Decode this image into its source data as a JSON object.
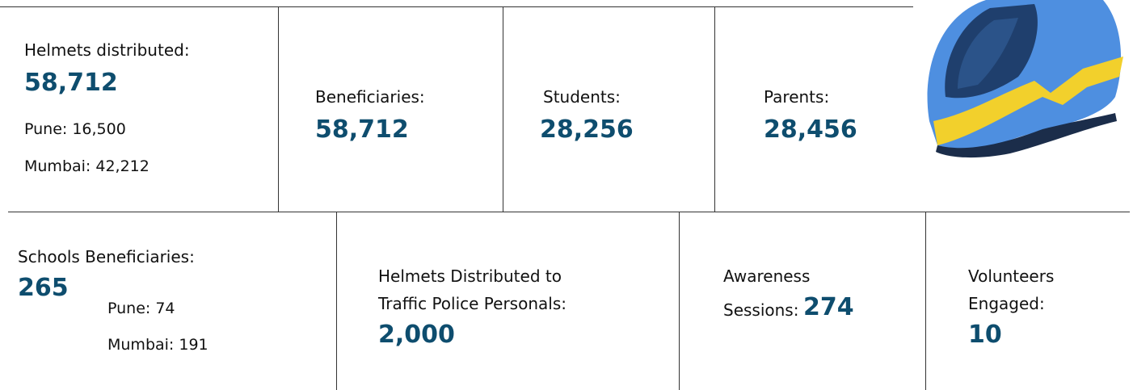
{
  "top": [
    {
      "label": "Helmets distributed:",
      "value": "58,712",
      "breakdown": [
        "Pune: 16,500",
        "Mumbai: 42,212"
      ]
    },
    {
      "label": "Beneficiaries:",
      "value": "58,712"
    },
    {
      "label": "Students:",
      "value": "28,256"
    },
    {
      "label": "Parents:",
      "value": "28,456"
    }
  ],
  "bottom": [
    {
      "label": "Schools Beneficiaries:",
      "value": "265",
      "breakdown": [
        "Pune: 74",
        "Mumbai: 191"
      ]
    },
    {
      "label_lines": [
        "Helmets Distributed to",
        "Traffic Police Personals:"
      ],
      "value": "2,000"
    },
    {
      "label_lines": [
        "Awareness",
        "Sessions:"
      ],
      "value": "274"
    },
    {
      "label_lines": [
        "Volunteers",
        "Engaged:"
      ],
      "value": "10"
    }
  ]
}
